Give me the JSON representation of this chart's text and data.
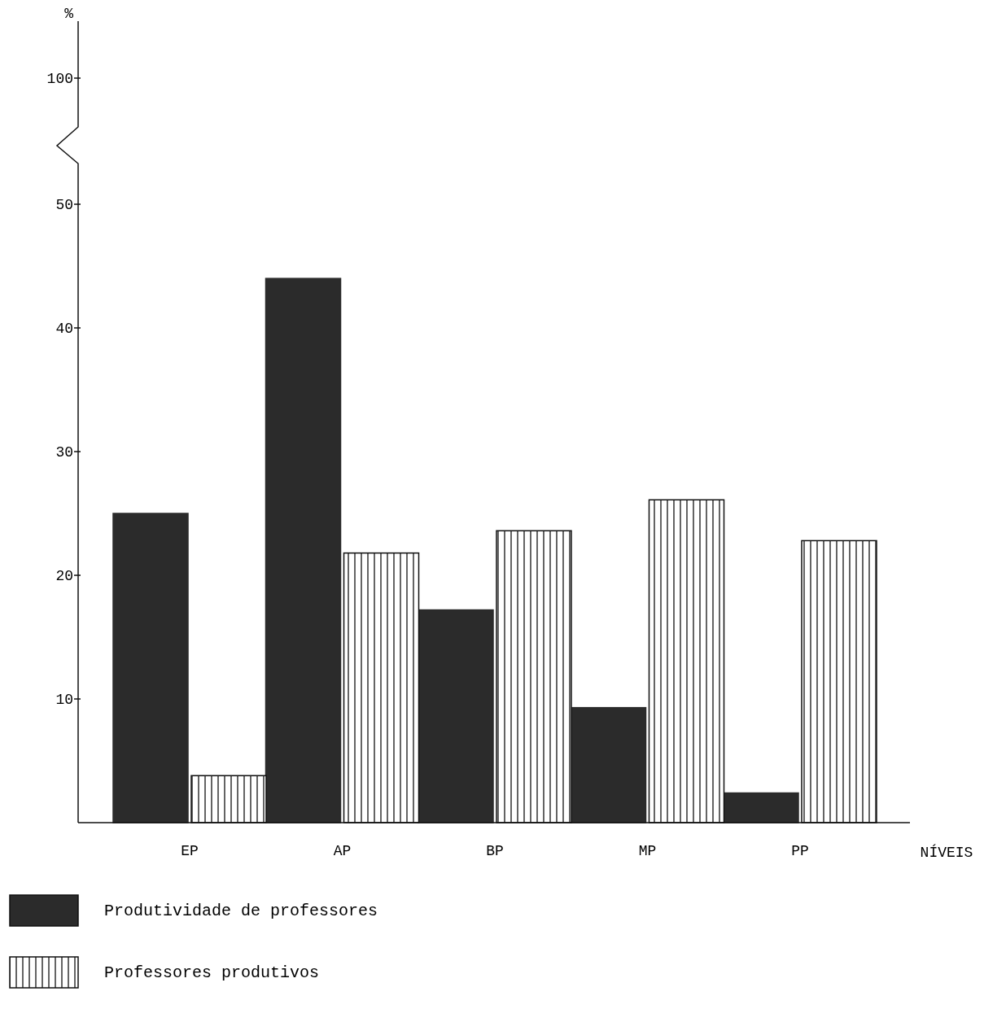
{
  "chart_data": {
    "type": "bar",
    "xlabel": "NÍVEIS",
    "categories": [
      "EP",
      "AP",
      "BP",
      "MP",
      "PP"
    ],
    "series": [
      {
        "name": "Produtividade de professores",
        "color": "#2b2b2b",
        "values": [
          25,
          44,
          17.2,
          9.3,
          2.4
        ]
      },
      {
        "name": "Professores produtivos",
        "color": "#111111",
        "values": [
          3.8,
          21.8,
          23.6,
          26.1,
          22.8
        ]
      }
    ],
    "ylim": [
      0,
      50
    ],
    "yticks": [
      10,
      20,
      30,
      40,
      50
    ],
    "annotations": [
      "100",
      "%"
    ],
    "legend": "bottom left",
    "grid": false
  }
}
